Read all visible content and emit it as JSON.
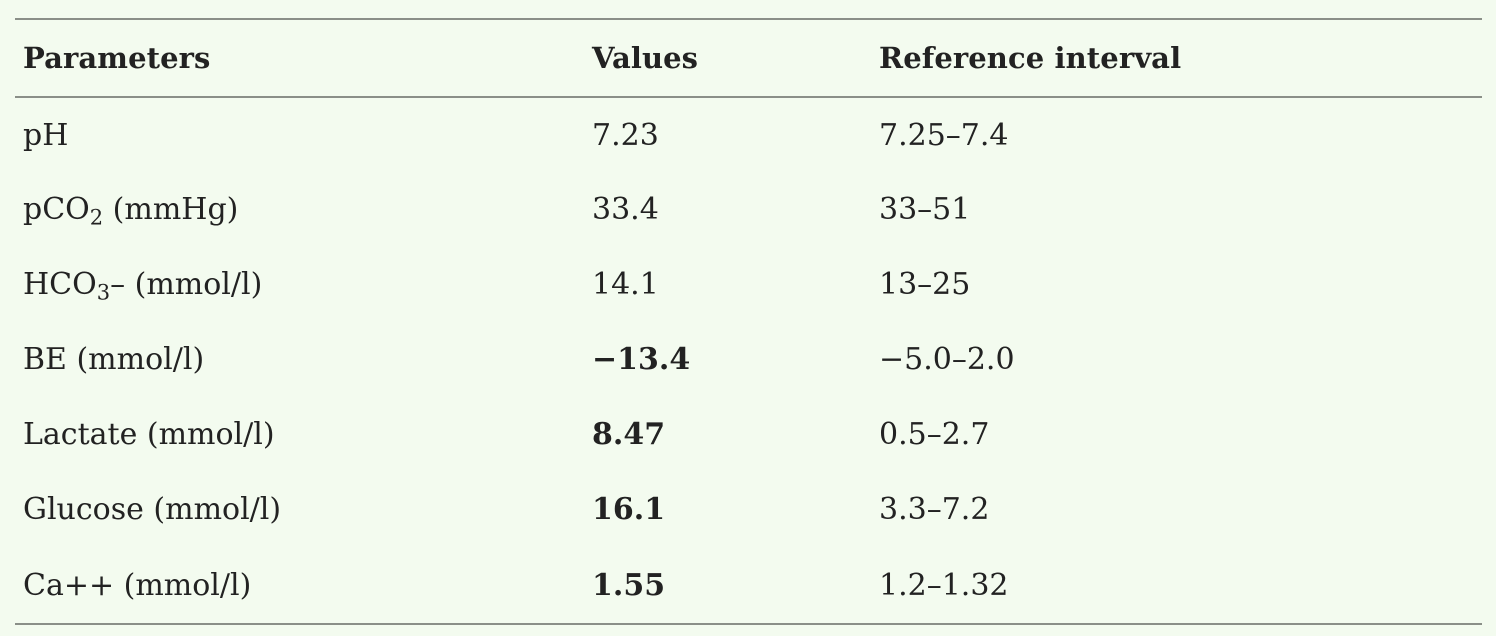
{
  "table": {
    "headers": [
      "Parameters",
      "Values",
      "Reference interval"
    ],
    "rows": [
      {
        "param_main": "pH",
        "param_sub": "",
        "param_tail": "",
        "value": "7.23",
        "value_bold": false,
        "reference": "7.25–7.4"
      },
      {
        "param_main": "pCO",
        "param_sub": "2",
        "param_tail": " (mmHg)",
        "value": "33.4",
        "value_bold": false,
        "reference": "33–51"
      },
      {
        "param_main": "HCO",
        "param_sub": "3",
        "param_tail": "– (mmol/l)",
        "value": "14.1",
        "value_bold": false,
        "reference": "13–25"
      },
      {
        "param_main": "BE (mmol/l)",
        "param_sub": "",
        "param_tail": "",
        "value": "−13.4",
        "value_bold": true,
        "reference": "−5.0–2.0"
      },
      {
        "param_main": "Lactate (mmol/l)",
        "param_sub": "",
        "param_tail": "",
        "value": "8.47",
        "value_bold": true,
        "reference": "0.5–2.7"
      },
      {
        "param_main": "Glucose (mmol/l)",
        "param_sub": "",
        "param_tail": "",
        "value": "16.1",
        "value_bold": true,
        "reference": "3.3–7.2"
      },
      {
        "param_main": "Ca++ (mmol/l)",
        "param_sub": "",
        "param_tail": "",
        "value": "1.55",
        "value_bold": true,
        "reference": "1.2–1.32"
      }
    ]
  }
}
